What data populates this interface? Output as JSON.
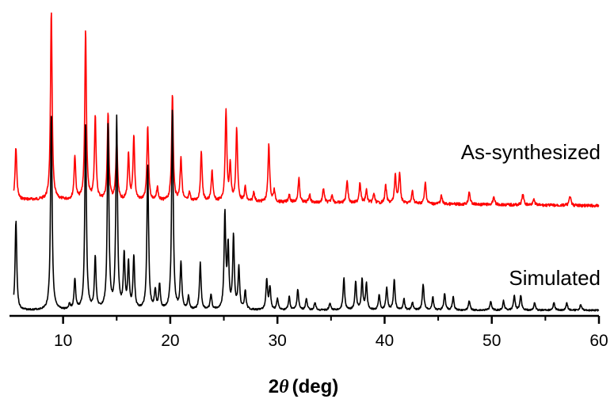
{
  "chart_data": {
    "type": "line",
    "title": "",
    "xlabel": {
      "prefix": "2",
      "symbol": "θ",
      "unit": "(deg)"
    },
    "ylabel": "",
    "xlim": [
      5,
      60
    ],
    "x_ticks": [
      10,
      20,
      30,
      40,
      50,
      60
    ],
    "x_tick_labels": [
      "10",
      "20",
      "30",
      "40",
      "50",
      "60"
    ],
    "grid": false,
    "legend": "none",
    "y_axis_visible": false,
    "series": [
      {
        "name": "As-synthesized",
        "color": "#ff0000",
        "baseline": 0.0,
        "peaks": [
          [
            5.6,
            0.32
          ],
          [
            8.9,
            1.17
          ],
          [
            11.1,
            0.27
          ],
          [
            12.1,
            1.04
          ],
          [
            13.0,
            0.52
          ],
          [
            14.2,
            0.54
          ],
          [
            15.0,
            0.38
          ],
          [
            16.1,
            0.28
          ],
          [
            16.6,
            0.39
          ],
          [
            17.9,
            0.46
          ],
          [
            18.8,
            0.08
          ],
          [
            20.2,
            0.66
          ],
          [
            21.0,
            0.27
          ],
          [
            21.8,
            0.05
          ],
          [
            22.9,
            0.31
          ],
          [
            23.9,
            0.19
          ],
          [
            25.2,
            0.56
          ],
          [
            25.6,
            0.22
          ],
          [
            26.2,
            0.45
          ],
          [
            27.0,
            0.09
          ],
          [
            27.8,
            0.06
          ],
          [
            29.2,
            0.36
          ],
          [
            29.7,
            0.07
          ],
          [
            31.1,
            0.05
          ],
          [
            32.0,
            0.15
          ],
          [
            33.0,
            0.05
          ],
          [
            34.3,
            0.09
          ],
          [
            35.1,
            0.05
          ],
          [
            36.5,
            0.14
          ],
          [
            37.7,
            0.13
          ],
          [
            38.3,
            0.08
          ],
          [
            39.0,
            0.06
          ],
          [
            40.1,
            0.11
          ],
          [
            41.0,
            0.18
          ],
          [
            41.4,
            0.19
          ],
          [
            42.6,
            0.08
          ],
          [
            43.8,
            0.13
          ],
          [
            45.3,
            0.05
          ],
          [
            47.9,
            0.08
          ],
          [
            50.2,
            0.05
          ],
          [
            52.9,
            0.07
          ],
          [
            53.9,
            0.04
          ],
          [
            57.3,
            0.06
          ]
        ]
      },
      {
        "name": "Simulated",
        "color": "#000000",
        "baseline": 0.0,
        "peaks": [
          [
            5.6,
            0.48
          ],
          [
            8.9,
            1.05
          ],
          [
            10.6,
            0.03
          ],
          [
            11.1,
            0.16
          ],
          [
            12.1,
            1.0
          ],
          [
            13.0,
            0.28
          ],
          [
            14.2,
            0.99
          ],
          [
            15.0,
            1.02
          ],
          [
            15.7,
            0.29
          ],
          [
            16.1,
            0.24
          ],
          [
            16.6,
            0.28
          ],
          [
            17.9,
            0.78
          ],
          [
            18.6,
            0.1
          ],
          [
            19.0,
            0.13
          ],
          [
            20.2,
            1.08
          ],
          [
            21.0,
            0.25
          ],
          [
            21.7,
            0.07
          ],
          [
            22.8,
            0.25
          ],
          [
            23.8,
            0.08
          ],
          [
            25.1,
            0.51
          ],
          [
            25.4,
            0.33
          ],
          [
            25.9,
            0.39
          ],
          [
            26.4,
            0.22
          ],
          [
            27.0,
            0.1
          ],
          [
            29.0,
            0.16
          ],
          [
            29.3,
            0.12
          ],
          [
            30.0,
            0.06
          ],
          [
            31.1,
            0.07
          ],
          [
            31.9,
            0.11
          ],
          [
            32.7,
            0.06
          ],
          [
            33.5,
            0.04
          ],
          [
            34.9,
            0.04
          ],
          [
            36.2,
            0.17
          ],
          [
            37.3,
            0.15
          ],
          [
            37.9,
            0.16
          ],
          [
            38.3,
            0.14
          ],
          [
            39.5,
            0.08
          ],
          [
            40.2,
            0.12
          ],
          [
            40.9,
            0.16
          ],
          [
            41.8,
            0.06
          ],
          [
            42.6,
            0.04
          ],
          [
            43.6,
            0.14
          ],
          [
            44.5,
            0.07
          ],
          [
            45.6,
            0.09
          ],
          [
            46.4,
            0.07
          ],
          [
            47.9,
            0.05
          ],
          [
            49.9,
            0.05
          ],
          [
            51.1,
            0.05
          ],
          [
            52.1,
            0.08
          ],
          [
            52.7,
            0.08
          ],
          [
            54.0,
            0.04
          ],
          [
            55.8,
            0.04
          ],
          [
            57.0,
            0.04
          ],
          [
            58.3,
            0.03
          ]
        ]
      }
    ]
  }
}
